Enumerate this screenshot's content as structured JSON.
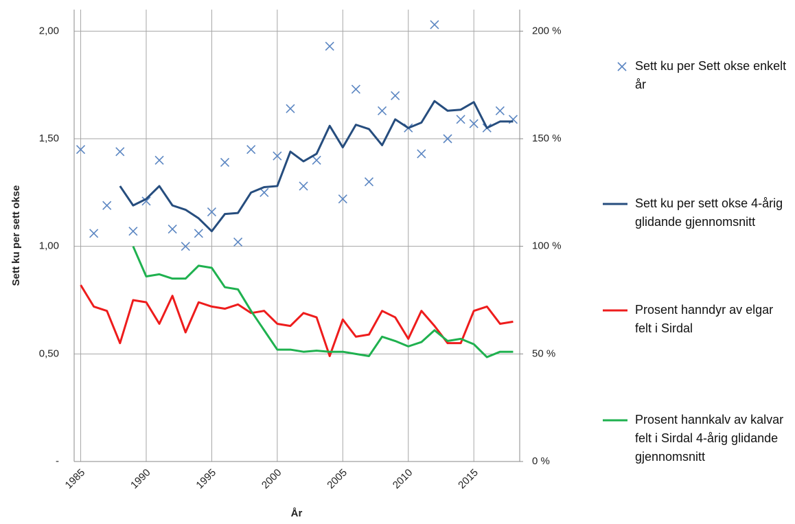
{
  "chart_data": {
    "type": "line",
    "x": [
      1985,
      1986,
      1987,
      1988,
      1989,
      1990,
      1991,
      1992,
      1993,
      1994,
      1995,
      1996,
      1997,
      1998,
      1999,
      2000,
      2001,
      2002,
      2003,
      2004,
      2005,
      2006,
      2007,
      2008,
      2009,
      2010,
      2011,
      2012,
      2013,
      2014,
      2015,
      2016,
      2017,
      2018
    ],
    "xlim": [
      1984.5,
      2018.5
    ],
    "xticks": [
      1985,
      1990,
      1995,
      2000,
      2005,
      2010,
      2015
    ],
    "ylim": [
      0,
      2.1
    ],
    "yticks": [
      {
        "value": 0,
        "label": "-"
      },
      {
        "value": 0.5,
        "label": "0,50"
      },
      {
        "value": 1,
        "label": "1,00"
      },
      {
        "value": 1.5,
        "label": "1,50"
      },
      {
        "value": 2,
        "label": "2,00"
      }
    ],
    "y2lim": [
      0,
      210
    ],
    "y2ticks": [
      {
        "value": 0,
        "label": "0 %"
      },
      {
        "value": 50,
        "label": "50 %"
      },
      {
        "value": 100,
        "label": "100 %"
      },
      {
        "value": 150,
        "label": "150 %"
      },
      {
        "value": 200,
        "label": "200 %"
      }
    ],
    "xlabel": "År",
    "ylabel": "Sett ku per sett okse",
    "grid": true,
    "legend": "right",
    "series": [
      {
        "name": "Sett ku per Sett okse enkelt år",
        "type": "scatter",
        "color": "#5b86c2",
        "values": [
          1.45,
          1.06,
          1.19,
          1.44,
          1.07,
          1.21,
          1.4,
          1.08,
          1.0,
          1.06,
          1.16,
          1.39,
          1.02,
          1.45,
          1.25,
          1.42,
          1.64,
          1.28,
          1.4,
          1.93,
          1.22,
          1.73,
          1.3,
          1.63,
          1.7,
          1.55,
          1.43,
          2.03,
          1.5,
          1.59,
          1.57,
          1.55,
          1.63,
          1.59
        ]
      },
      {
        "name": "Sett ku per sett okse 4-årig glidande gjennomsnitt",
        "type": "line",
        "color": "#264d7e",
        "values": [
          null,
          null,
          null,
          1.28,
          1.19,
          1.22,
          1.28,
          1.19,
          1.17,
          1.13,
          1.07,
          1.15,
          1.155,
          1.25,
          1.275,
          1.28,
          1.44,
          1.395,
          1.43,
          1.56,
          1.46,
          1.565,
          1.545,
          1.47,
          1.59,
          1.55,
          1.575,
          1.675,
          1.63,
          1.635,
          1.67,
          1.55,
          1.58,
          1.58
        ]
      },
      {
        "name": "Prosent hanndyr av elgar felt i Sirdal",
        "type": "line",
        "axis": "y2",
        "color": "#ee1c1c",
        "values": [
          82,
          72,
          70,
          55,
          75,
          74,
          64,
          77,
          60,
          74,
          72,
          71,
          73,
          69,
          70,
          64,
          63,
          69,
          67,
          49,
          66,
          58,
          59,
          70,
          67,
          57,
          70,
          63,
          55,
          55,
          70,
          72,
          64,
          65
        ]
      },
      {
        "name": "Prosent hannkalv av kalvar felt i Sirdal 4-årig glidande gjennomsnitt",
        "type": "line",
        "axis": "y2",
        "color": "#1fb14f",
        "values": [
          null,
          null,
          null,
          null,
          100,
          86,
          87,
          85,
          85,
          91,
          90,
          81,
          80,
          70,
          61,
          52,
          52,
          51,
          51.5,
          51,
          51,
          50,
          49,
          58,
          56,
          53.5,
          55.5,
          61,
          56,
          57,
          54.5,
          48.5,
          51,
          51
        ]
      }
    ]
  }
}
